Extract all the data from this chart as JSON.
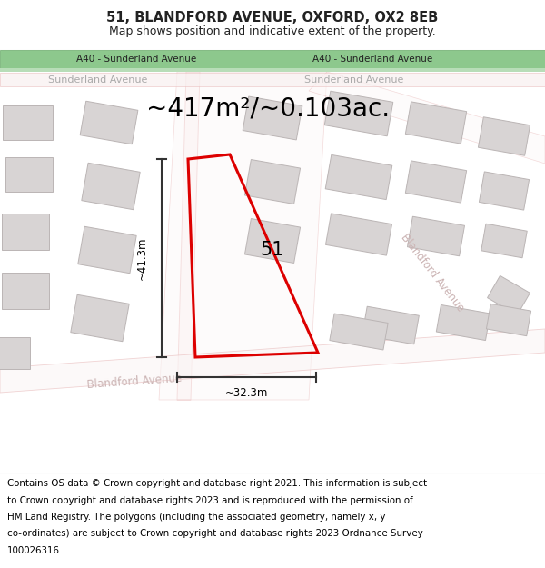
{
  "title_line1": "51, BLANDFORD AVENUE, OXFORD, OX2 8EB",
  "title_line2": "Map shows position and indicative extent of the property.",
  "area_text": "~417m²/~0.103ac.",
  "label_51": "51",
  "dim_height": "~41.3m",
  "dim_width": "~32.3m",
  "road_label_top_left": "A40 - Sunderland Avenue",
  "road_label_top_right": "A40 - Sunderland Avenue",
  "road_label_sunderland_left": "Sunderland Avenue",
  "road_label_sunderland_right": "Sunderland Avenue",
  "road_label_blandford_bottom": "Blandford Avenue",
  "road_label_blandford_right": "Blandford Avenue",
  "footer_lines": [
    "Contains OS data © Crown copyright and database right 2021. This information is subject",
    "to Crown copyright and database rights 2023 and is reproduced with the permission of",
    "HM Land Registry. The polygons (including the associated geometry, namely x, y",
    "co-ordinates) are subject to Crown copyright and database rights 2023 Ordnance Survey",
    "100026316."
  ],
  "bg_color": "#f7f2f2",
  "map_bg": "#ffffff",
  "road_green_color": "#8dc88d",
  "road_green_border": "#6aaa6a",
  "road_green_text_bg": "#c8e6c8",
  "building_fill": "#d8d4d4",
  "building_stroke": "#bbb5b5",
  "road_line_color": "#e8b8b8",
  "road_fill_color": "#f5eded",
  "property_stroke": "#dd0000",
  "dim_line_color": "#333333",
  "text_gray": "#aaaaaa",
  "footer_fontsize": 7.5,
  "title_fontsize": 10.5,
  "subtitle_fontsize": 9,
  "area_fontsize": 20
}
